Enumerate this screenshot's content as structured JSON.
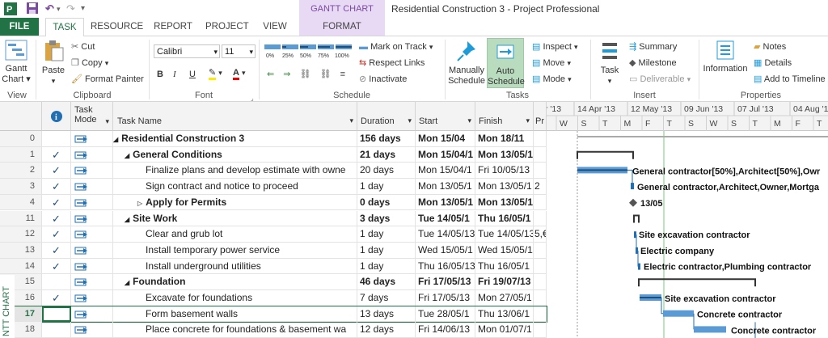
{
  "window": {
    "title": "Residential Construction 3 - Project Professional",
    "contextual_tab_group": "GANTT CHART TOOLS",
    "app_icon": "project-icon"
  },
  "quick_access": {
    "save": "save-icon",
    "undo": "undo-icon",
    "redo": "redo-icon"
  },
  "tabs": [
    {
      "label": "FILE"
    },
    {
      "label": "TASK"
    },
    {
      "label": "RESOURCE"
    },
    {
      "label": "REPORT"
    },
    {
      "label": "PROJECT"
    },
    {
      "label": "VIEW"
    },
    {
      "label": "FORMAT"
    }
  ],
  "ribbon": {
    "view": {
      "gantt_chart": "Gantt",
      "gantt_chart2": "Chart",
      "group": "View"
    },
    "clipboard": {
      "paste": "Paste",
      "cut": "Cut",
      "copy": "Copy",
      "format_painter": "Format Painter",
      "group": "Clipboard"
    },
    "font": {
      "family": "Calibri",
      "size": "11",
      "bold": "B",
      "italic": "I",
      "underline": "U",
      "group": "Font"
    },
    "schedule": {
      "pcts": [
        "0%",
        "25%",
        "50%",
        "75%",
        "100%"
      ],
      "mark_on_track": "Mark on Track",
      "respect_links": "Respect Links",
      "inactivate": "Inactivate",
      "group": "Schedule"
    },
    "tasks": {
      "manually_1": "Manually",
      "manually_2": "Schedule",
      "auto_1": "Auto",
      "auto_2": "Schedule",
      "inspect": "Inspect",
      "move": "Move",
      "mode": "Mode",
      "group": "Tasks"
    },
    "insert": {
      "task": "Task",
      "summary": "Summary",
      "milestone": "Milestone",
      "deliverable": "Deliverable",
      "group": "Insert"
    },
    "properties": {
      "information": "Information",
      "notes": "Notes",
      "details": "Details",
      "add_to_timeline": "Add to Timeline",
      "group": "Properties"
    }
  },
  "grid": {
    "headers": {
      "mode": "Task Mode",
      "name": "Task Name",
      "duration": "Duration",
      "start": "Start",
      "finish": "Finish",
      "pred": "Pr"
    },
    "rows": [
      {
        "id": "0",
        "check": "",
        "name": "Residential Construction 3",
        "duration": "156 days",
        "start": "Mon 15/04",
        "finish": "Mon 18/11",
        "pred": "",
        "level": 0,
        "summary": true,
        "bold": true
      },
      {
        "id": "1",
        "check": "✓",
        "name": "General Conditions",
        "duration": "21 days",
        "start": "Mon 15/04/1",
        "finish": "Mon 13/05/1",
        "pred": "",
        "level": 1,
        "summary": true,
        "bold": true
      },
      {
        "id": "2",
        "check": "✓",
        "name": "Finalize plans and develop estimate with owne",
        "duration": "20 days",
        "start": "Mon 15/04/1",
        "finish": "Fri 10/05/13",
        "pred": "",
        "level": 2,
        "summary": false,
        "bold": false
      },
      {
        "id": "3",
        "check": "✓",
        "name": "Sign contract and notice to proceed",
        "duration": "1 day",
        "start": "Mon 13/05/1",
        "finish": "Mon 13/05/1",
        "pred": "2",
        "level": 2,
        "summary": false,
        "bold": false
      },
      {
        "id": "4",
        "check": "✓",
        "name": "Apply for Permits",
        "duration": "0 days",
        "start": "Mon 13/05/1",
        "finish": "Mon 13/05/1",
        "pred": "",
        "level": 2,
        "summary": "collapsed",
        "bold": true
      },
      {
        "id": "11",
        "check": "✓",
        "name": "Site Work",
        "duration": "3 days",
        "start": "Tue 14/05/1",
        "finish": "Thu 16/05/1",
        "pred": "",
        "level": 1,
        "summary": true,
        "bold": true
      },
      {
        "id": "12",
        "check": "✓",
        "name": "Clear and grub lot",
        "duration": "1 day",
        "start": "Tue 14/05/13",
        "finish": "Tue 14/05/13",
        "pred": "5,€",
        "level": 2,
        "summary": false,
        "bold": false
      },
      {
        "id": "13",
        "check": "✓",
        "name": "Install temporary power service",
        "duration": "1 day",
        "start": "Wed 15/05/1",
        "finish": "Wed 15/05/1",
        "pred": "",
        "level": 2,
        "summary": false,
        "bold": false
      },
      {
        "id": "14",
        "check": "✓",
        "name": "Install underground utilities",
        "duration": "1 day",
        "start": "Thu 16/05/13",
        "finish": "Thu 16/05/1",
        "pred": "",
        "level": 2,
        "summary": false,
        "bold": false
      },
      {
        "id": "15",
        "check": "",
        "name": "Foundation",
        "duration": "46 days",
        "start": "Fri 17/05/13",
        "finish": "Fri 19/07/13",
        "pred": "",
        "level": 1,
        "summary": true,
        "bold": true
      },
      {
        "id": "16",
        "check": "✓",
        "name": "Excavate for foundations",
        "duration": "7 days",
        "start": "Fri 17/05/13",
        "finish": "Mon 27/05/1",
        "pred": "",
        "level": 2,
        "summary": false,
        "bold": false
      },
      {
        "id": "17",
        "check": "",
        "name": "Form basement walls",
        "duration": "13 days",
        "start": "Tue 28/05/1",
        "finish": "Thu 13/06/1",
        "pred": "",
        "level": 2,
        "summary": false,
        "bold": false
      },
      {
        "id": "18",
        "check": "",
        "name": "Place concrete for foundations & basement wa",
        "duration": "12 days",
        "start": "Fri 14/06/13",
        "finish": "Mon 01/07/1",
        "pred": "",
        "level": 2,
        "summary": false,
        "bold": false
      }
    ]
  },
  "gantt": {
    "top_scale": [
      "r '13",
      "14 Apr '13",
      "12 May '13",
      "09 Jun '13",
      "07 Jul '13",
      "04 Aug '1"
    ],
    "bottom_scale": [
      "W",
      "S",
      "T",
      "M",
      "F",
      "T",
      "S",
      "W",
      "S",
      "T",
      "M",
      "F",
      "T"
    ],
    "labels": [
      {
        "row": 2,
        "text": "General contractor[50%],Architect[50%],Owr"
      },
      {
        "row": 3,
        "text": "General contractor,Architect,Owner,Mortga"
      },
      {
        "row": 4,
        "text": "13/05"
      },
      {
        "row": 6,
        "text": "Site excavation contractor"
      },
      {
        "row": 7,
        "text": "Electric company"
      },
      {
        "row": 8,
        "text": "Electric contractor,Plumbing contractor"
      },
      {
        "row": 10,
        "text": "Site excavation contractor"
      },
      {
        "row": 11,
        "text": "Concrete contractor"
      },
      {
        "row": 12,
        "text": "Concrete contractor"
      }
    ]
  },
  "side_label": "NTT CHART",
  "colors": {
    "accent": "#217346",
    "bar": "#5b9bd5",
    "summary": "#333333",
    "contextual": "#e8d9f5"
  }
}
